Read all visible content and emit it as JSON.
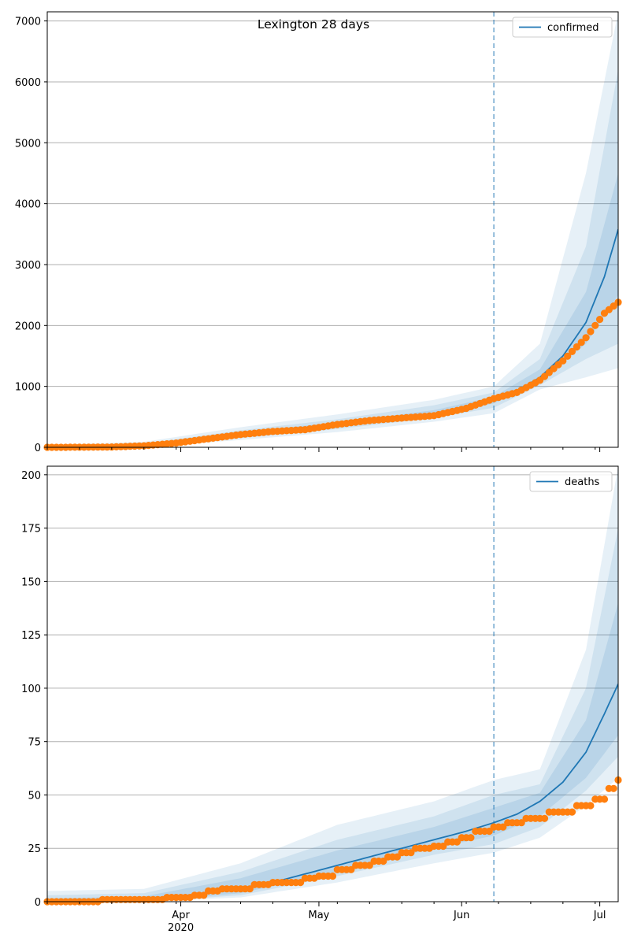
{
  "figure": {
    "title": "Lexington 28 days"
  },
  "colors": {
    "model": "#1f77b4",
    "observed": "#ff7f0e",
    "band": "#1f77b4",
    "grid": "#b0b0b0",
    "forecast_line": "#1f77b4"
  },
  "chart_data": [
    {
      "type": "line",
      "panel": "top",
      "title": "Lexington 28 days",
      "legend": {
        "entries": [
          "confirmed"
        ],
        "placement": "top-right"
      },
      "forecast_start": "2020-06-08",
      "x_axis": {
        "type": "date",
        "range": [
          "2020-03-03",
          "2020-07-05"
        ],
        "major_ticks": [],
        "tick_labels": []
      },
      "y_axis": {
        "range": [
          0,
          7150
        ],
        "ticks": [
          0,
          1000,
          2000,
          3000,
          4000,
          5000,
          6000,
          7000
        ],
        "tick_labels": [
          "0",
          "1000",
          "2000",
          "3000",
          "4000",
          "5000",
          "6000",
          "7000"
        ]
      },
      "grid": "horizontal",
      "series": [
        {
          "name": "confirmed",
          "kind": "model-median-line",
          "points": [
            [
              "2020-03-03",
              0
            ],
            [
              "2020-03-10",
              2
            ],
            [
              "2020-03-17",
              8
            ],
            [
              "2020-03-24",
              30
            ],
            [
              "2020-03-31",
              75
            ],
            [
              "2020-04-07",
              140
            ],
            [
              "2020-04-14",
              210
            ],
            [
              "2020-04-21",
              260
            ],
            [
              "2020-04-28",
              300
            ],
            [
              "2020-05-05",
              370
            ],
            [
              "2020-05-12",
              430
            ],
            [
              "2020-05-19",
              480
            ],
            [
              "2020-05-26",
              520
            ],
            [
              "2020-06-02",
              600
            ],
            [
              "2020-06-08",
              780
            ],
            [
              "2020-06-13",
              920
            ],
            [
              "2020-06-18",
              1150
            ],
            [
              "2020-06-23",
              1500
            ],
            [
              "2020-06-28",
              2050
            ],
            [
              "2020-07-02",
              2800
            ],
            [
              "2020-07-05",
              3580
            ]
          ]
        },
        {
          "name": "",
          "kind": "observed-points",
          "points": [
            [
              "2020-03-03",
              0
            ],
            [
              "2020-03-10",
              1
            ],
            [
              "2020-03-17",
              5
            ],
            [
              "2020-03-24",
              25
            ],
            [
              "2020-03-31",
              70
            ],
            [
              "2020-04-07",
              140
            ],
            [
              "2020-04-14",
              210
            ],
            [
              "2020-04-21",
              260
            ],
            [
              "2020-04-28",
              290
            ],
            [
              "2020-05-05",
              375
            ],
            [
              "2020-05-12",
              440
            ],
            [
              "2020-05-19",
              480
            ],
            [
              "2020-05-26",
              520
            ],
            [
              "2020-06-02",
              640
            ],
            [
              "2020-06-08",
              800
            ],
            [
              "2020-06-13",
              900
            ],
            [
              "2020-06-18",
              1100
            ],
            [
              "2020-06-23",
              1420
            ],
            [
              "2020-06-28",
              1800
            ],
            [
              "2020-07-02",
              2200
            ],
            [
              "2020-07-05",
              2380
            ]
          ]
        }
      ],
      "bands": [
        {
          "name": "",
          "kind": "uncertainty-outer",
          "upper": [
            [
              "2020-03-03",
              40
            ],
            [
              "2020-03-24",
              90
            ],
            [
              "2020-04-14",
              330
            ],
            [
              "2020-05-05",
              540
            ],
            [
              "2020-05-26",
              780
            ],
            [
              "2020-06-08",
              1000
            ],
            [
              "2020-06-18",
              1700
            ],
            [
              "2020-06-28",
              4500
            ],
            [
              "2020-07-05",
              7150
            ]
          ],
          "lower": [
            [
              "2020-03-03",
              0
            ],
            [
              "2020-03-24",
              5
            ],
            [
              "2020-04-14",
              120
            ],
            [
              "2020-05-05",
              250
            ],
            [
              "2020-05-26",
              420
            ],
            [
              "2020-06-08",
              560
            ],
            [
              "2020-06-18",
              950
            ],
            [
              "2020-06-28",
              1150
            ],
            [
              "2020-07-05",
              1300
            ]
          ]
        },
        {
          "name": "",
          "kind": "uncertainty-middle",
          "upper": [
            [
              "2020-03-03",
              20
            ],
            [
              "2020-03-24",
              60
            ],
            [
              "2020-04-14",
              280
            ],
            [
              "2020-05-05",
              460
            ],
            [
              "2020-05-26",
              690
            ],
            [
              "2020-06-08",
              900
            ],
            [
              "2020-06-18",
              1450
            ],
            [
              "2020-06-28",
              3300
            ],
            [
              "2020-07-05",
              6200
            ]
          ],
          "lower": [
            [
              "2020-03-03",
              0
            ],
            [
              "2020-03-24",
              12
            ],
            [
              "2020-04-14",
              150
            ],
            [
              "2020-05-05",
              300
            ],
            [
              "2020-05-26",
              480
            ],
            [
              "2020-06-08",
              650
            ],
            [
              "2020-06-18",
              1020
            ],
            [
              "2020-06-28",
              1450
            ],
            [
              "2020-07-05",
              1700
            ]
          ]
        },
        {
          "name": "",
          "kind": "uncertainty-inner",
          "upper": [
            [
              "2020-03-03",
              10
            ],
            [
              "2020-03-24",
              45
            ],
            [
              "2020-04-14",
              250
            ],
            [
              "2020-05-05",
              410
            ],
            [
              "2020-05-26",
              610
            ],
            [
              "2020-06-08",
              830
            ],
            [
              "2020-06-18",
              1280
            ],
            [
              "2020-06-28",
              2550
            ],
            [
              "2020-07-05",
              4500
            ]
          ],
          "lower": [
            [
              "2020-03-03",
              0
            ],
            [
              "2020-03-24",
              20
            ],
            [
              "2020-04-14",
              175
            ],
            [
              "2020-05-05",
              340
            ],
            [
              "2020-05-26",
              500
            ],
            [
              "2020-06-08",
              720
            ],
            [
              "2020-06-18",
              1080
            ],
            [
              "2020-06-28",
              1700
            ],
            [
              "2020-07-05",
              2500
            ]
          ]
        }
      ]
    },
    {
      "type": "line",
      "panel": "bottom",
      "legend": {
        "entries": [
          "deaths"
        ],
        "placement": "top-right"
      },
      "forecast_start": "2020-06-08",
      "x_axis": {
        "type": "date",
        "range": [
          "2020-03-03",
          "2020-07-05"
        ],
        "major_ticks": [
          "2020-04-01",
          "2020-05-01",
          "2020-06-01",
          "2020-07-01"
        ],
        "tick_labels": [
          "Apr",
          "May",
          "Jun",
          "Jul"
        ],
        "year_label": "2020"
      },
      "y_axis": {
        "range": [
          0,
          204
        ],
        "ticks": [
          0,
          25,
          50,
          75,
          100,
          125,
          150,
          175,
          200
        ],
        "tick_labels": [
          "0",
          "25",
          "50",
          "75",
          "100",
          "125",
          "150",
          "175",
          "200"
        ]
      },
      "grid": "horizontal",
      "series": [
        {
          "name": "deaths",
          "kind": "model-median-line",
          "points": [
            [
              "2020-03-03",
              0
            ],
            [
              "2020-03-17",
              0.5
            ],
            [
              "2020-03-24",
              1
            ],
            [
              "2020-03-31",
              2.5
            ],
            [
              "2020-04-07",
              4
            ],
            [
              "2020-04-14",
              6
            ],
            [
              "2020-04-21",
              9
            ],
            [
              "2020-04-28",
              13
            ],
            [
              "2020-05-05",
              17
            ],
            [
              "2020-05-12",
              21
            ],
            [
              "2020-05-19",
              25
            ],
            [
              "2020-05-26",
              29
            ],
            [
              "2020-06-02",
              33
            ],
            [
              "2020-06-08",
              37
            ],
            [
              "2020-06-13",
              41
            ],
            [
              "2020-06-18",
              47
            ],
            [
              "2020-06-23",
              56
            ],
            [
              "2020-06-28",
              70
            ],
            [
              "2020-07-02",
              88
            ],
            [
              "2020-07-05",
              102
            ]
          ]
        },
        {
          "name": "",
          "kind": "observed-points",
          "points": [
            [
              "2020-03-03",
              0
            ],
            [
              "2020-03-14",
              0
            ],
            [
              "2020-03-15",
              1
            ],
            [
              "2020-03-28",
              1
            ],
            [
              "2020-03-29",
              2
            ],
            [
              "2020-04-03",
              2
            ],
            [
              "2020-04-04",
              3
            ],
            [
              "2020-04-07",
              5
            ],
            [
              "2020-04-10",
              6
            ],
            [
              "2020-04-17",
              8
            ],
            [
              "2020-04-21",
              9
            ],
            [
              "2020-04-26",
              9
            ],
            [
              "2020-04-28",
              11
            ],
            [
              "2020-05-01",
              12
            ],
            [
              "2020-05-05",
              15
            ],
            [
              "2020-05-09",
              17
            ],
            [
              "2020-05-13",
              19
            ],
            [
              "2020-05-16",
              21
            ],
            [
              "2020-05-19",
              23
            ],
            [
              "2020-05-22",
              25
            ],
            [
              "2020-05-26",
              26
            ],
            [
              "2020-05-29",
              28
            ],
            [
              "2020-06-01",
              30
            ],
            [
              "2020-06-04",
              33
            ],
            [
              "2020-06-08",
              35
            ],
            [
              "2020-06-11",
              37
            ],
            [
              "2020-06-15",
              39
            ],
            [
              "2020-06-20",
              42
            ],
            [
              "2020-06-26",
              45
            ],
            [
              "2020-06-30",
              48
            ],
            [
              "2020-07-03",
              53
            ],
            [
              "2020-07-05",
              57
            ]
          ]
        }
      ],
      "bands": [
        {
          "name": "",
          "kind": "uncertainty-outer",
          "upper": [
            [
              "2020-03-03",
              5
            ],
            [
              "2020-03-24",
              6
            ],
            [
              "2020-04-14",
              18
            ],
            [
              "2020-05-05",
              36
            ],
            [
              "2020-05-26",
              47
            ],
            [
              "2020-06-08",
              57
            ],
            [
              "2020-06-18",
              62
            ],
            [
              "2020-06-28",
              118
            ],
            [
              "2020-07-05",
              204
            ]
          ],
          "lower": [
            [
              "2020-03-03",
              0
            ],
            [
              "2020-03-24",
              0
            ],
            [
              "2020-04-14",
              2
            ],
            [
              "2020-05-05",
              9
            ],
            [
              "2020-05-26",
              18
            ],
            [
              "2020-06-08",
              23
            ],
            [
              "2020-06-18",
              30
            ],
            [
              "2020-06-28",
              45
            ],
            [
              "2020-07-05",
              58
            ]
          ]
        },
        {
          "name": "",
          "kind": "uncertainty-middle",
          "upper": [
            [
              "2020-03-03",
              3
            ],
            [
              "2020-03-24",
              4
            ],
            [
              "2020-04-14",
              14
            ],
            [
              "2020-05-05",
              29
            ],
            [
              "2020-05-26",
              40
            ],
            [
              "2020-06-08",
              50
            ],
            [
              "2020-06-18",
              55
            ],
            [
              "2020-06-28",
              100
            ],
            [
              "2020-07-05",
              175
            ]
          ],
          "lower": [
            [
              "2020-03-03",
              0
            ],
            [
              "2020-03-24",
              0
            ],
            [
              "2020-04-14",
              3
            ],
            [
              "2020-05-05",
              12
            ],
            [
              "2020-05-26",
              22
            ],
            [
              "2020-06-08",
              27
            ],
            [
              "2020-06-18",
              35
            ],
            [
              "2020-06-28",
              52
            ],
            [
              "2020-07-05",
              68
            ]
          ]
        },
        {
          "name": "",
          "kind": "uncertainty-inner",
          "upper": [
            [
              "2020-03-03",
              1.5
            ],
            [
              "2020-03-24",
              2.5
            ],
            [
              "2020-04-14",
              11
            ],
            [
              "2020-05-05",
              24
            ],
            [
              "2020-05-26",
              35
            ],
            [
              "2020-06-08",
              44
            ],
            [
              "2020-06-18",
              51
            ],
            [
              "2020-06-28",
              85
            ],
            [
              "2020-07-05",
              140
            ]
          ],
          "lower": [
            [
              "2020-03-03",
              0
            ],
            [
              "2020-03-24",
              0
            ],
            [
              "2020-04-14",
              4
            ],
            [
              "2020-05-05",
              14
            ],
            [
              "2020-05-26",
              25
            ],
            [
              "2020-06-08",
              31
            ],
            [
              "2020-06-18",
              40
            ],
            [
              "2020-06-28",
              58
            ],
            [
              "2020-07-05",
              78
            ]
          ]
        }
      ]
    }
  ]
}
